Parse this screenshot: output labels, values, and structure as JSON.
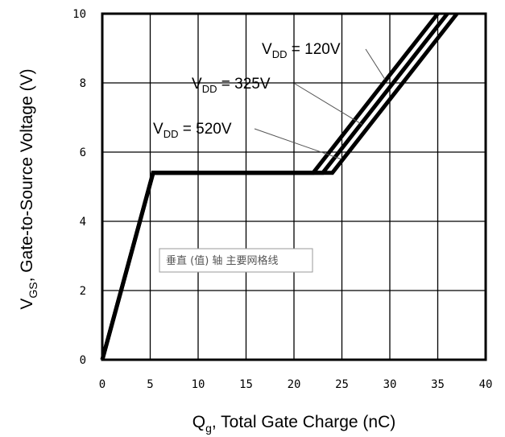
{
  "chart_data": {
    "type": "line",
    "xlabel": {
      "main": "Q",
      "sub": "g",
      "rest": ", Total Gate Charge (nC)"
    },
    "ylabel": {
      "main": "V",
      "sub": "GS",
      "rest": ", Gate-to-Source Voltage (V)"
    },
    "xlim": [
      0,
      40
    ],
    "ylim": [
      0,
      10
    ],
    "xticks": [
      0,
      5,
      10,
      15,
      20,
      25,
      30,
      35,
      40
    ],
    "yticks": [
      0,
      2,
      4,
      6,
      8,
      10
    ],
    "grid": true,
    "series": [
      {
        "name": "V_DD = 120V",
        "label_main": "V",
        "label_sub": "DD",
        "label_rest": " = 120V",
        "x": [
          0,
          5.3,
          22.0,
          35.0
        ],
        "y": [
          0,
          5.4,
          5.4,
          10
        ]
      },
      {
        "name": "V_DD = 325V",
        "label_main": "V",
        "label_sub": "DD",
        "label_rest": " = 325V",
        "x": [
          0,
          5.3,
          23.0,
          36.0
        ],
        "y": [
          0,
          5.4,
          5.4,
          10
        ]
      },
      {
        "name": "V_DD = 520V",
        "label_main": "V",
        "label_sub": "DD",
        "label_rest": " = 520V",
        "x": [
          0,
          5.3,
          24.0,
          37.0
        ],
        "y": [
          0,
          5.4,
          5.4,
          10
        ]
      }
    ],
    "tooltip": "垂直 (值) 轴 主要网格线"
  },
  "colors": {
    "line": "#000000",
    "grid": "#000000",
    "background": "#ffffff"
  }
}
